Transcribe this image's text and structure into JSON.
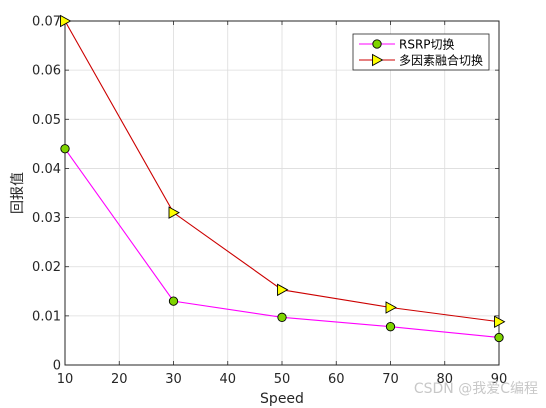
{
  "chart_data": {
    "type": "line",
    "title": "",
    "xlabel": "Speed",
    "ylabel": "回报值",
    "xlim": [
      10,
      90
    ],
    "ylim": [
      0,
      0.07
    ],
    "xticks": [
      10,
      20,
      30,
      40,
      50,
      60,
      70,
      80,
      90
    ],
    "yticks": [
      0,
      0.01,
      0.02,
      0.03,
      0.04,
      0.05,
      0.06,
      0.07
    ],
    "ytick_labels": [
      "0",
      "0.01",
      "0.02",
      "0.03",
      "0.04",
      "0.05",
      "0.06",
      "0.07"
    ],
    "grid": true,
    "legend_position": "top-right",
    "series": [
      {
        "name": "RSRP切换",
        "color": "#ff00ff",
        "marker": "circle",
        "marker_fill": "#7fd400",
        "x": [
          10,
          30,
          50,
          70,
          90
        ],
        "y": [
          0.044,
          0.013,
          0.0097,
          0.0078,
          0.0056
        ]
      },
      {
        "name": "多因素融合切换",
        "color": "#cc0000",
        "marker": "triangle-right",
        "marker_fill": "#ffff00",
        "x": [
          10,
          30,
          50,
          70,
          90
        ],
        "y": [
          0.07,
          0.031,
          0.0153,
          0.0117,
          0.0088
        ]
      }
    ]
  },
  "watermark": "CSDN @我爱C编程"
}
